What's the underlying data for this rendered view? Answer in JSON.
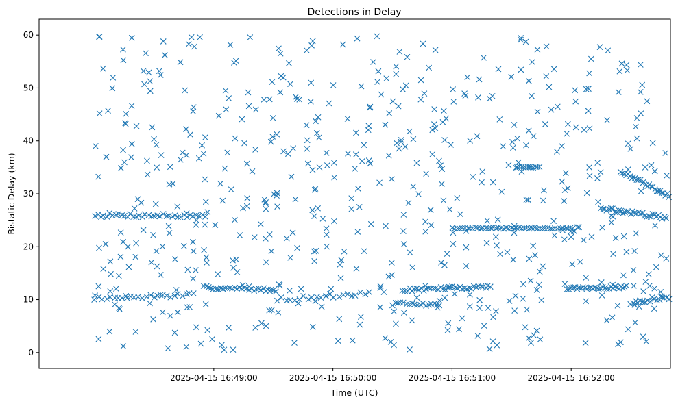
{
  "chart_data": {
    "type": "scatter",
    "title": "Detections in Delay",
    "xlabel": "Time (UTC)",
    "ylabel": "Bistatic Delay (km)",
    "marker": "x",
    "color": "#1f77b4",
    "x_unit": "seconds since 2025-04-15 16:48:00 UTC",
    "xlim": [
      -28,
      290
    ],
    "ylim": [
      -3,
      63
    ],
    "x_ticks": [
      {
        "value": 60,
        "label": "2025-04-15 16:49:00"
      },
      {
        "value": 120,
        "label": "2025-04-15 16:50:00"
      },
      {
        "value": 180,
        "label": "2025-04-15 16:51:00"
      },
      {
        "value": 240,
        "label": "2025-04-15 16:52:00"
      },
      {
        "value": 300,
        "label": "2025-04-15 16:53:00"
      }
    ],
    "y_ticks": [
      0,
      10,
      20,
      30,
      40,
      50,
      60
    ],
    "grid": false,
    "tracks": [
      {
        "name": "track-a",
        "x_start": 0,
        "x_end": 56,
        "y_start": 26.0,
        "y_end": 25.8,
        "step": 1.5,
        "jitter": 0.4
      },
      {
        "name": "track-b",
        "x_start": 0,
        "x_end": 50,
        "y_start": 10.2,
        "y_end": 10.9,
        "step": 2.0,
        "jitter": 0.35
      },
      {
        "name": "track-c",
        "x_start": 55,
        "x_end": 92,
        "y_start": 12.3,
        "y_end": 11.8,
        "step": 1.2,
        "jitter": 0.3
      },
      {
        "name": "track-d",
        "x_start": 92,
        "x_end": 140,
        "y_start": 10.0,
        "y_end": 11.2,
        "step": 2.2,
        "jitter": 0.4
      },
      {
        "name": "track-e",
        "x_start": 150,
        "x_end": 175,
        "y_start": 9.2,
        "y_end": 9.0,
        "step": 1.4,
        "jitter": 0.3
      },
      {
        "name": "track-f",
        "x_start": 155,
        "x_end": 200,
        "y_start": 11.8,
        "y_end": 12.5,
        "step": 1.2,
        "jitter": 0.3
      },
      {
        "name": "track-g",
        "x_start": 180,
        "x_end": 240,
        "y_start": 23.5,
        "y_end": 23.5,
        "step": 1.3,
        "jitter": 0.15
      },
      {
        "name": "track-h",
        "x_start": 212,
        "x_end": 224,
        "y_start": 35.0,
        "y_end": 35.0,
        "step": 1.0,
        "jitter": 0.1
      },
      {
        "name": "track-i",
        "x_start": 238,
        "x_end": 268,
        "y_start": 12.0,
        "y_end": 12.4,
        "step": 1.0,
        "jitter": 0.3
      },
      {
        "name": "track-j",
        "x_start": 255,
        "x_end": 288,
        "y_start": 27.2,
        "y_end": 25.5,
        "step": 1.0,
        "jitter": 0.35
      },
      {
        "name": "track-k",
        "x_start": 265,
        "x_end": 290,
        "y_start": 34.2,
        "y_end": 29.5,
        "step": 0.9,
        "jitter": 0.3
      },
      {
        "name": "track-l",
        "x_start": 270,
        "x_end": 290,
        "y_start": 9.5,
        "y_end": 10.5,
        "step": 1.2,
        "jitter": 0.4
      }
    ],
    "noise": {
      "count": 600,
      "x_range": [
        0,
        290
      ],
      "y_range": [
        0.5,
        59.8
      ],
      "seed": 7
    }
  }
}
